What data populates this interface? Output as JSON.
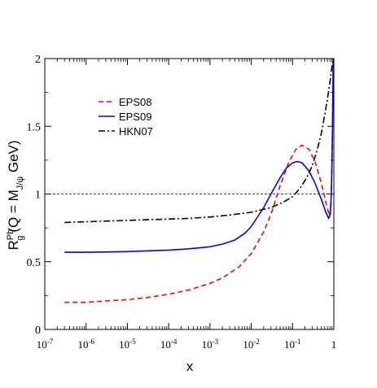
{
  "chart_data": {
    "type": "line",
    "xlabel": "x",
    "ylabel": {
      "prefix": "R",
      "sup": "Pb",
      "sub": "g",
      "main": "(Q = M",
      "main_sub": "J/ψ",
      "tail": " GeV)"
    },
    "xscale": "log",
    "xlim": [
      1e-07,
      1
    ],
    "ylim": [
      0,
      2
    ],
    "xticks": [
      {
        "base": "10",
        "exp": "-7"
      },
      {
        "base": "10",
        "exp": "-6"
      },
      {
        "base": "10",
        "exp": "-5"
      },
      {
        "base": "10",
        "exp": "-4"
      },
      {
        "base": "10",
        "exp": "-3"
      },
      {
        "base": "10",
        "exp": "-2"
      },
      {
        "base": "10",
        "exp": "-1"
      },
      {
        "base": "1",
        "exp": ""
      }
    ],
    "yticks": [
      "0",
      "0.5",
      "1",
      "1.5",
      "2"
    ],
    "reference_line": {
      "y": 1,
      "style": "dashed",
      "color": "#000000"
    },
    "legend": {
      "position": "upper-left"
    },
    "series": [
      {
        "name": "EPS08",
        "color": "#ff0000",
        "dash": "6,4",
        "x": [
          3e-07,
          1e-06,
          3e-06,
          1e-05,
          3e-05,
          0.0001,
          0.0003,
          0.001,
          0.002,
          0.005,
          0.01,
          0.02,
          0.03,
          0.05,
          0.08,
          0.12,
          0.17,
          0.25,
          0.35,
          0.5,
          0.65,
          0.78,
          0.85,
          0.9,
          0.94,
          0.97
        ],
        "y": [
          0.2,
          0.2,
          0.21,
          0.22,
          0.235,
          0.26,
          0.29,
          0.34,
          0.38,
          0.46,
          0.56,
          0.72,
          0.85,
          1.06,
          1.23,
          1.33,
          1.36,
          1.33,
          1.24,
          1.08,
          0.93,
          0.84,
          0.9,
          1.2,
          1.65,
          2.0
        ]
      },
      {
        "name": "EPS09",
        "color": "#0000ff",
        "dash": "",
        "x": [
          3e-07,
          1e-06,
          3e-06,
          1e-05,
          3e-05,
          0.0001,
          0.0003,
          0.001,
          0.002,
          0.004,
          0.007,
          0.01,
          0.02,
          0.03,
          0.05,
          0.07,
          0.1,
          0.13,
          0.17,
          0.25,
          0.35,
          0.5,
          0.65,
          0.75,
          0.82,
          0.87,
          0.92,
          0.95,
          0.97
        ],
        "y": [
          0.57,
          0.57,
          0.572,
          0.575,
          0.58,
          0.585,
          0.595,
          0.61,
          0.63,
          0.66,
          0.71,
          0.76,
          0.9,
          1.0,
          1.12,
          1.19,
          1.23,
          1.24,
          1.23,
          1.17,
          1.08,
          0.96,
          0.86,
          0.82,
          0.85,
          1.0,
          1.4,
          1.8,
          2.0
        ]
      },
      {
        "name": "HKN07",
        "color": "#000000",
        "dash": "8,3,2,3",
        "x": [
          3e-07,
          1e-06,
          3e-06,
          1e-05,
          3e-05,
          0.0001,
          0.0003,
          0.001,
          0.003,
          0.01,
          0.03,
          0.06,
          0.1,
          0.15,
          0.22,
          0.3,
          0.4,
          0.5,
          0.6,
          0.7,
          0.8,
          0.88,
          0.94,
          0.98
        ],
        "y": [
          0.79,
          0.795,
          0.8,
          0.805,
          0.81,
          0.815,
          0.82,
          0.83,
          0.845,
          0.865,
          0.9,
          0.94,
          0.98,
          1.04,
          1.12,
          1.21,
          1.33,
          1.45,
          1.58,
          1.7,
          1.82,
          1.92,
          1.98,
          2.0
        ]
      }
    ]
  }
}
